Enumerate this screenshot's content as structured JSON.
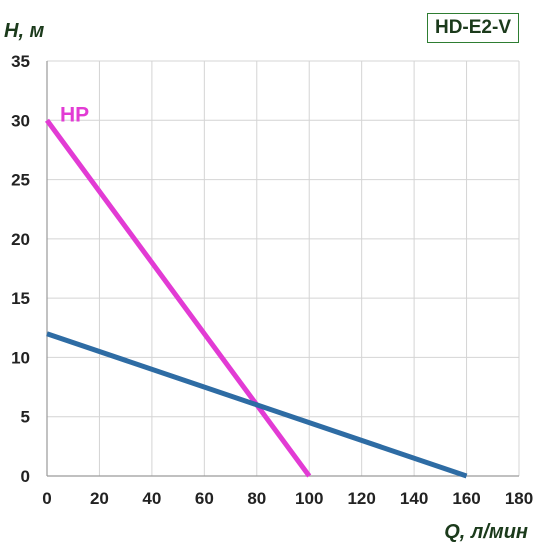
{
  "chart_data": {
    "type": "line",
    "ylabel": "H, м",
    "xlabel": "Q, л/мин",
    "model": "HD-E2-V",
    "xlim": [
      0,
      180
    ],
    "ylim": [
      0,
      35
    ],
    "xticks": [
      0,
      20,
      40,
      60,
      80,
      100,
      120,
      140,
      160,
      180
    ],
    "yticks": [
      0,
      5,
      10,
      15,
      20,
      25,
      30,
      35
    ],
    "grid": true,
    "series": [
      {
        "name": "HP",
        "color": "#e23bd4",
        "x": [
          0,
          100
        ],
        "y": [
          30,
          0
        ]
      },
      {
        "name": "",
        "color": "#2e6ca4",
        "x": [
          0,
          160
        ],
        "y": [
          12,
          0
        ]
      }
    ],
    "colors": {
      "axis_title": "#1b3a1b",
      "tick_label": "#222222",
      "grid": "#d4d4d4",
      "badge_border": "#2e7d32"
    }
  }
}
